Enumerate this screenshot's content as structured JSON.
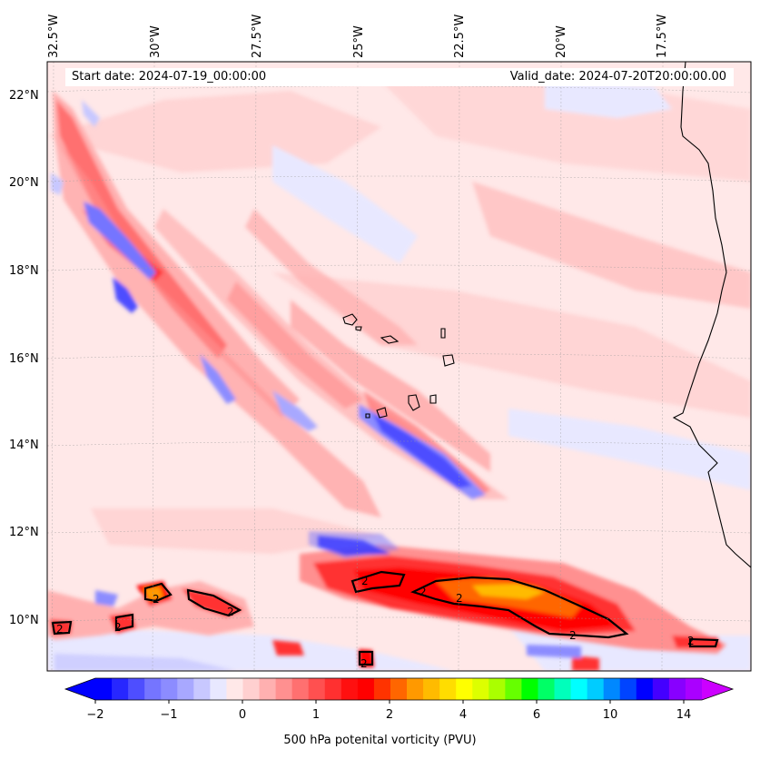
{
  "map": {
    "start_date": "Start date: 2024-07-19_00:00:00",
    "valid_date": "Valid_date: 2024-07-20T20:00:00.00",
    "longitude_labels": [
      "32.5°W",
      "30°W",
      "27.5°W",
      "25°W",
      "22.5°W",
      "20°W",
      "17.5°W"
    ],
    "latitude_labels": [
      "22°N",
      "20°N",
      "18°N",
      "16°N",
      "14°N",
      "12°N",
      "10°N"
    ],
    "contour_label": "2"
  },
  "colorbar": {
    "label": "500 hPa potenital vorticity (PVU)",
    "tick_labels": [
      "−2",
      "−1",
      "0",
      "1",
      "2",
      "4",
      "6",
      "10",
      "14"
    ],
    "colors": [
      "#0000ff",
      "#2727ff",
      "#4e4eff",
      "#7575ff",
      "#8c8cff",
      "#a8a8ff",
      "#c8c8ff",
      "#e8e8ff",
      "#ffe8e8",
      "#ffd0d0",
      "#ffb0b0",
      "#ff9090",
      "#ff7070",
      "#ff5050",
      "#ff3030",
      "#ff1010",
      "#ff0000",
      "#ff3300",
      "#ff6600",
      "#ff9900",
      "#ffbb00",
      "#ffdd00",
      "#ffff00",
      "#ddff00",
      "#aaff00",
      "#66ff00",
      "#00ff00",
      "#00ff66",
      "#00ffbb",
      "#00ffff",
      "#00ccff",
      "#0088ff",
      "#0044ff",
      "#0000ff",
      "#4400ff",
      "#8800ff",
      "#aa00ff"
    ],
    "over_color": "#cc00ff",
    "under_color": "#0000ff"
  }
}
